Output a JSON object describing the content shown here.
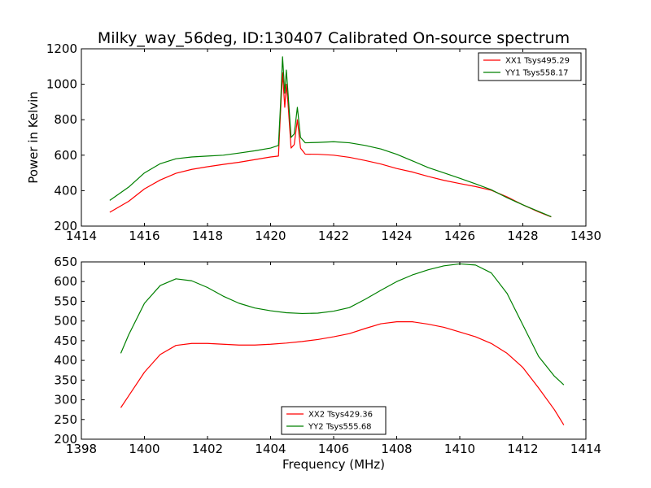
{
  "title": "Milky_way_56deg, ID:130407 Calibrated On-source spectrum",
  "chart_data": [
    {
      "type": "line",
      "title": "Milky_way_56deg, ID:130407 Calibrated On-source spectrum",
      "xlabel": "",
      "ylabel": "Power in Kelvin",
      "xlim": [
        1414,
        1430
      ],
      "ylim": [
        200,
        1200
      ],
      "xticks": [
        "1414",
        "1416",
        "1418",
        "1420",
        "1422",
        "1424",
        "1426",
        "1428",
        "1430"
      ],
      "yticks": [
        "200",
        "400",
        "600",
        "800",
        "1000",
        "1200"
      ],
      "legend_position": "top-right",
      "series": [
        {
          "name": "XX1 Tsys495.29",
          "color": "#ff0000",
          "x": [
            1414.9,
            1415.5,
            1416.0,
            1416.5,
            1417.0,
            1417.5,
            1418.0,
            1418.5,
            1419.0,
            1419.5,
            1420.0,
            1420.25,
            1420.32,
            1420.38,
            1420.45,
            1420.5,
            1420.55,
            1420.65,
            1420.75,
            1420.85,
            1420.95,
            1421.1,
            1421.5,
            1422.0,
            1422.5,
            1423.0,
            1423.5,
            1424.0,
            1424.5,
            1425.0,
            1425.5,
            1426.0,
            1426.5,
            1427.0,
            1427.5,
            1428.0,
            1428.5,
            1428.9
          ],
          "y": [
            278,
            340,
            410,
            460,
            498,
            520,
            535,
            548,
            560,
            575,
            590,
            595,
            860,
            1065,
            870,
            1000,
            900,
            640,
            660,
            800,
            640,
            606,
            605,
            600,
            588,
            570,
            550,
            525,
            505,
            480,
            458,
            440,
            423,
            402,
            365,
            320,
            280,
            252
          ]
        },
        {
          "name": "YY1 Tsys558.17",
          "color": "#008000",
          "x": [
            1414.9,
            1415.5,
            1416.0,
            1416.5,
            1417.0,
            1417.5,
            1418.0,
            1418.5,
            1419.0,
            1419.5,
            1420.0,
            1420.25,
            1420.32,
            1420.38,
            1420.45,
            1420.5,
            1420.55,
            1420.65,
            1420.75,
            1420.85,
            1420.95,
            1421.1,
            1421.5,
            1422.0,
            1422.5,
            1423.0,
            1423.5,
            1424.0,
            1424.5,
            1425.0,
            1425.5,
            1426.0,
            1426.5,
            1427.0,
            1427.5,
            1428.0,
            1428.5,
            1428.9
          ],
          "y": [
            345,
            420,
            500,
            552,
            580,
            590,
            595,
            600,
            612,
            625,
            640,
            655,
            900,
            1155,
            950,
            1080,
            960,
            700,
            720,
            870,
            700,
            670,
            672,
            676,
            670,
            655,
            635,
            605,
            568,
            530,
            500,
            470,
            438,
            405,
            360,
            320,
            283,
            253
          ]
        }
      ]
    },
    {
      "type": "line",
      "title": "",
      "xlabel": "Frequency (MHz)",
      "ylabel": "",
      "xlim": [
        1398,
        1414
      ],
      "ylim": [
        200,
        650
      ],
      "xticks": [
        "1398",
        "1400",
        "1402",
        "1404",
        "1406",
        "1408",
        "1410",
        "1412",
        "1414"
      ],
      "yticks": [
        "200",
        "250",
        "300",
        "350",
        "400",
        "450",
        "500",
        "550",
        "600",
        "650"
      ],
      "legend_position": "bottom-center",
      "series": [
        {
          "name": "XX2 Tsys429.36",
          "color": "#ff0000",
          "x": [
            1399.25,
            1399.5,
            1400.0,
            1400.5,
            1401.0,
            1401.5,
            1402.0,
            1402.5,
            1403.0,
            1403.5,
            1404.0,
            1404.5,
            1405.0,
            1405.5,
            1406.0,
            1406.5,
            1407.0,
            1407.5,
            1408.0,
            1408.5,
            1409.0,
            1409.5,
            1410.0,
            1410.5,
            1411.0,
            1411.5,
            1412.0,
            1412.5,
            1413.0,
            1413.3
          ],
          "y": [
            280,
            310,
            370,
            415,
            438,
            443,
            443,
            441,
            439,
            439,
            441,
            444,
            448,
            453,
            460,
            468,
            481,
            493,
            498,
            498,
            492,
            484,
            472,
            460,
            443,
            418,
            382,
            330,
            275,
            236
          ]
        },
        {
          "name": "YY2 Tsys555.68",
          "color": "#008000",
          "x": [
            1399.25,
            1399.5,
            1400.0,
            1400.5,
            1401.0,
            1401.5,
            1402.0,
            1402.5,
            1403.0,
            1403.5,
            1404.0,
            1404.5,
            1405.0,
            1405.5,
            1406.0,
            1406.5,
            1407.0,
            1407.5,
            1408.0,
            1408.5,
            1409.0,
            1409.5,
            1410.0,
            1410.5,
            1411.0,
            1411.5,
            1412.0,
            1412.5,
            1413.0,
            1413.3
          ],
          "y": [
            418,
            465,
            545,
            590,
            607,
            602,
            585,
            563,
            545,
            533,
            526,
            521,
            519,
            520,
            525,
            534,
            555,
            578,
            600,
            617,
            630,
            640,
            645,
            642,
            622,
            570,
            490,
            410,
            360,
            338
          ]
        }
      ]
    }
  ]
}
